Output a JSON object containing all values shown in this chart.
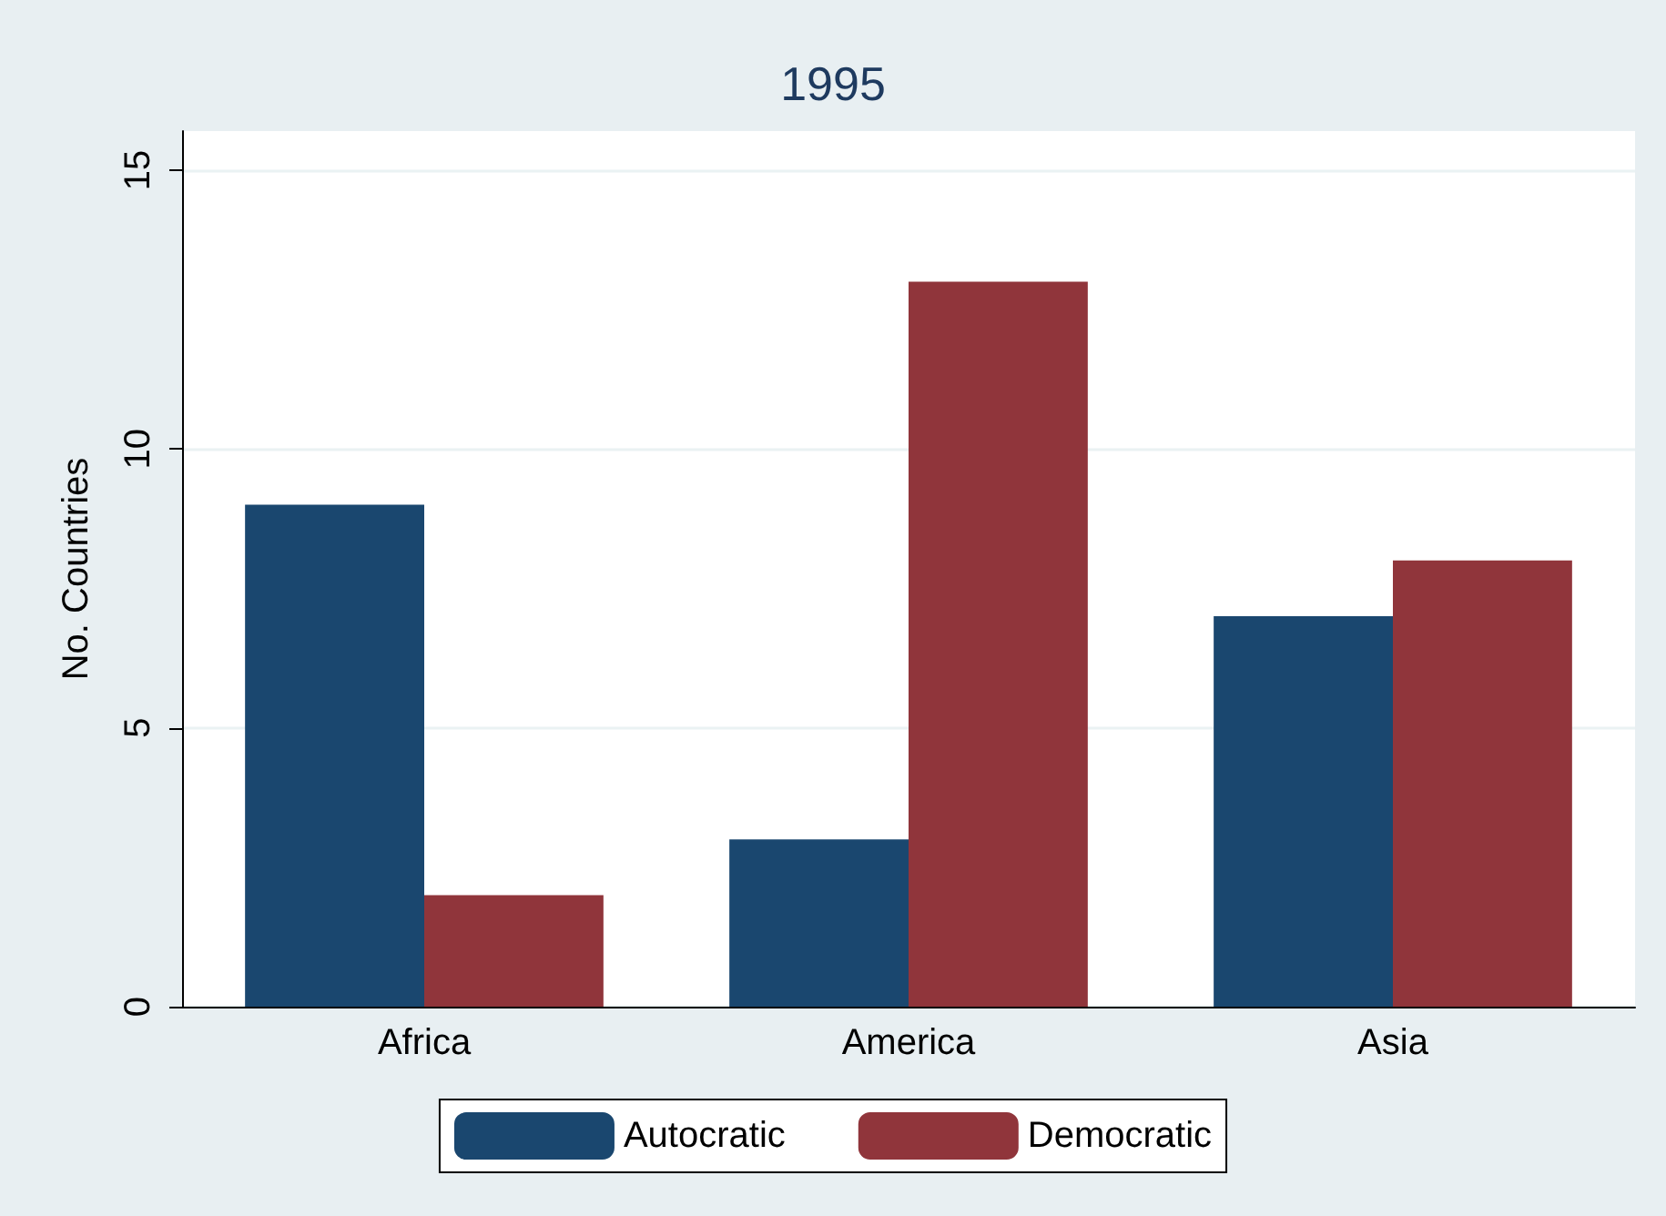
{
  "chart_data": {
    "type": "bar",
    "title": "1995",
    "ylabel": "No. Countries",
    "categories": [
      "Africa",
      "America",
      "Asia"
    ],
    "series": [
      {
        "name": "Autocratic",
        "color": "#1a476f",
        "values": [
          9,
          3,
          7
        ]
      },
      {
        "name": "Democratic",
        "color": "#90353b",
        "values": [
          2,
          13,
          8
        ]
      }
    ],
    "ylim": [
      0,
      15.7
    ],
    "yticks": [
      0,
      5,
      10,
      15
    ],
    "grid": "y",
    "legend": "bottom"
  }
}
